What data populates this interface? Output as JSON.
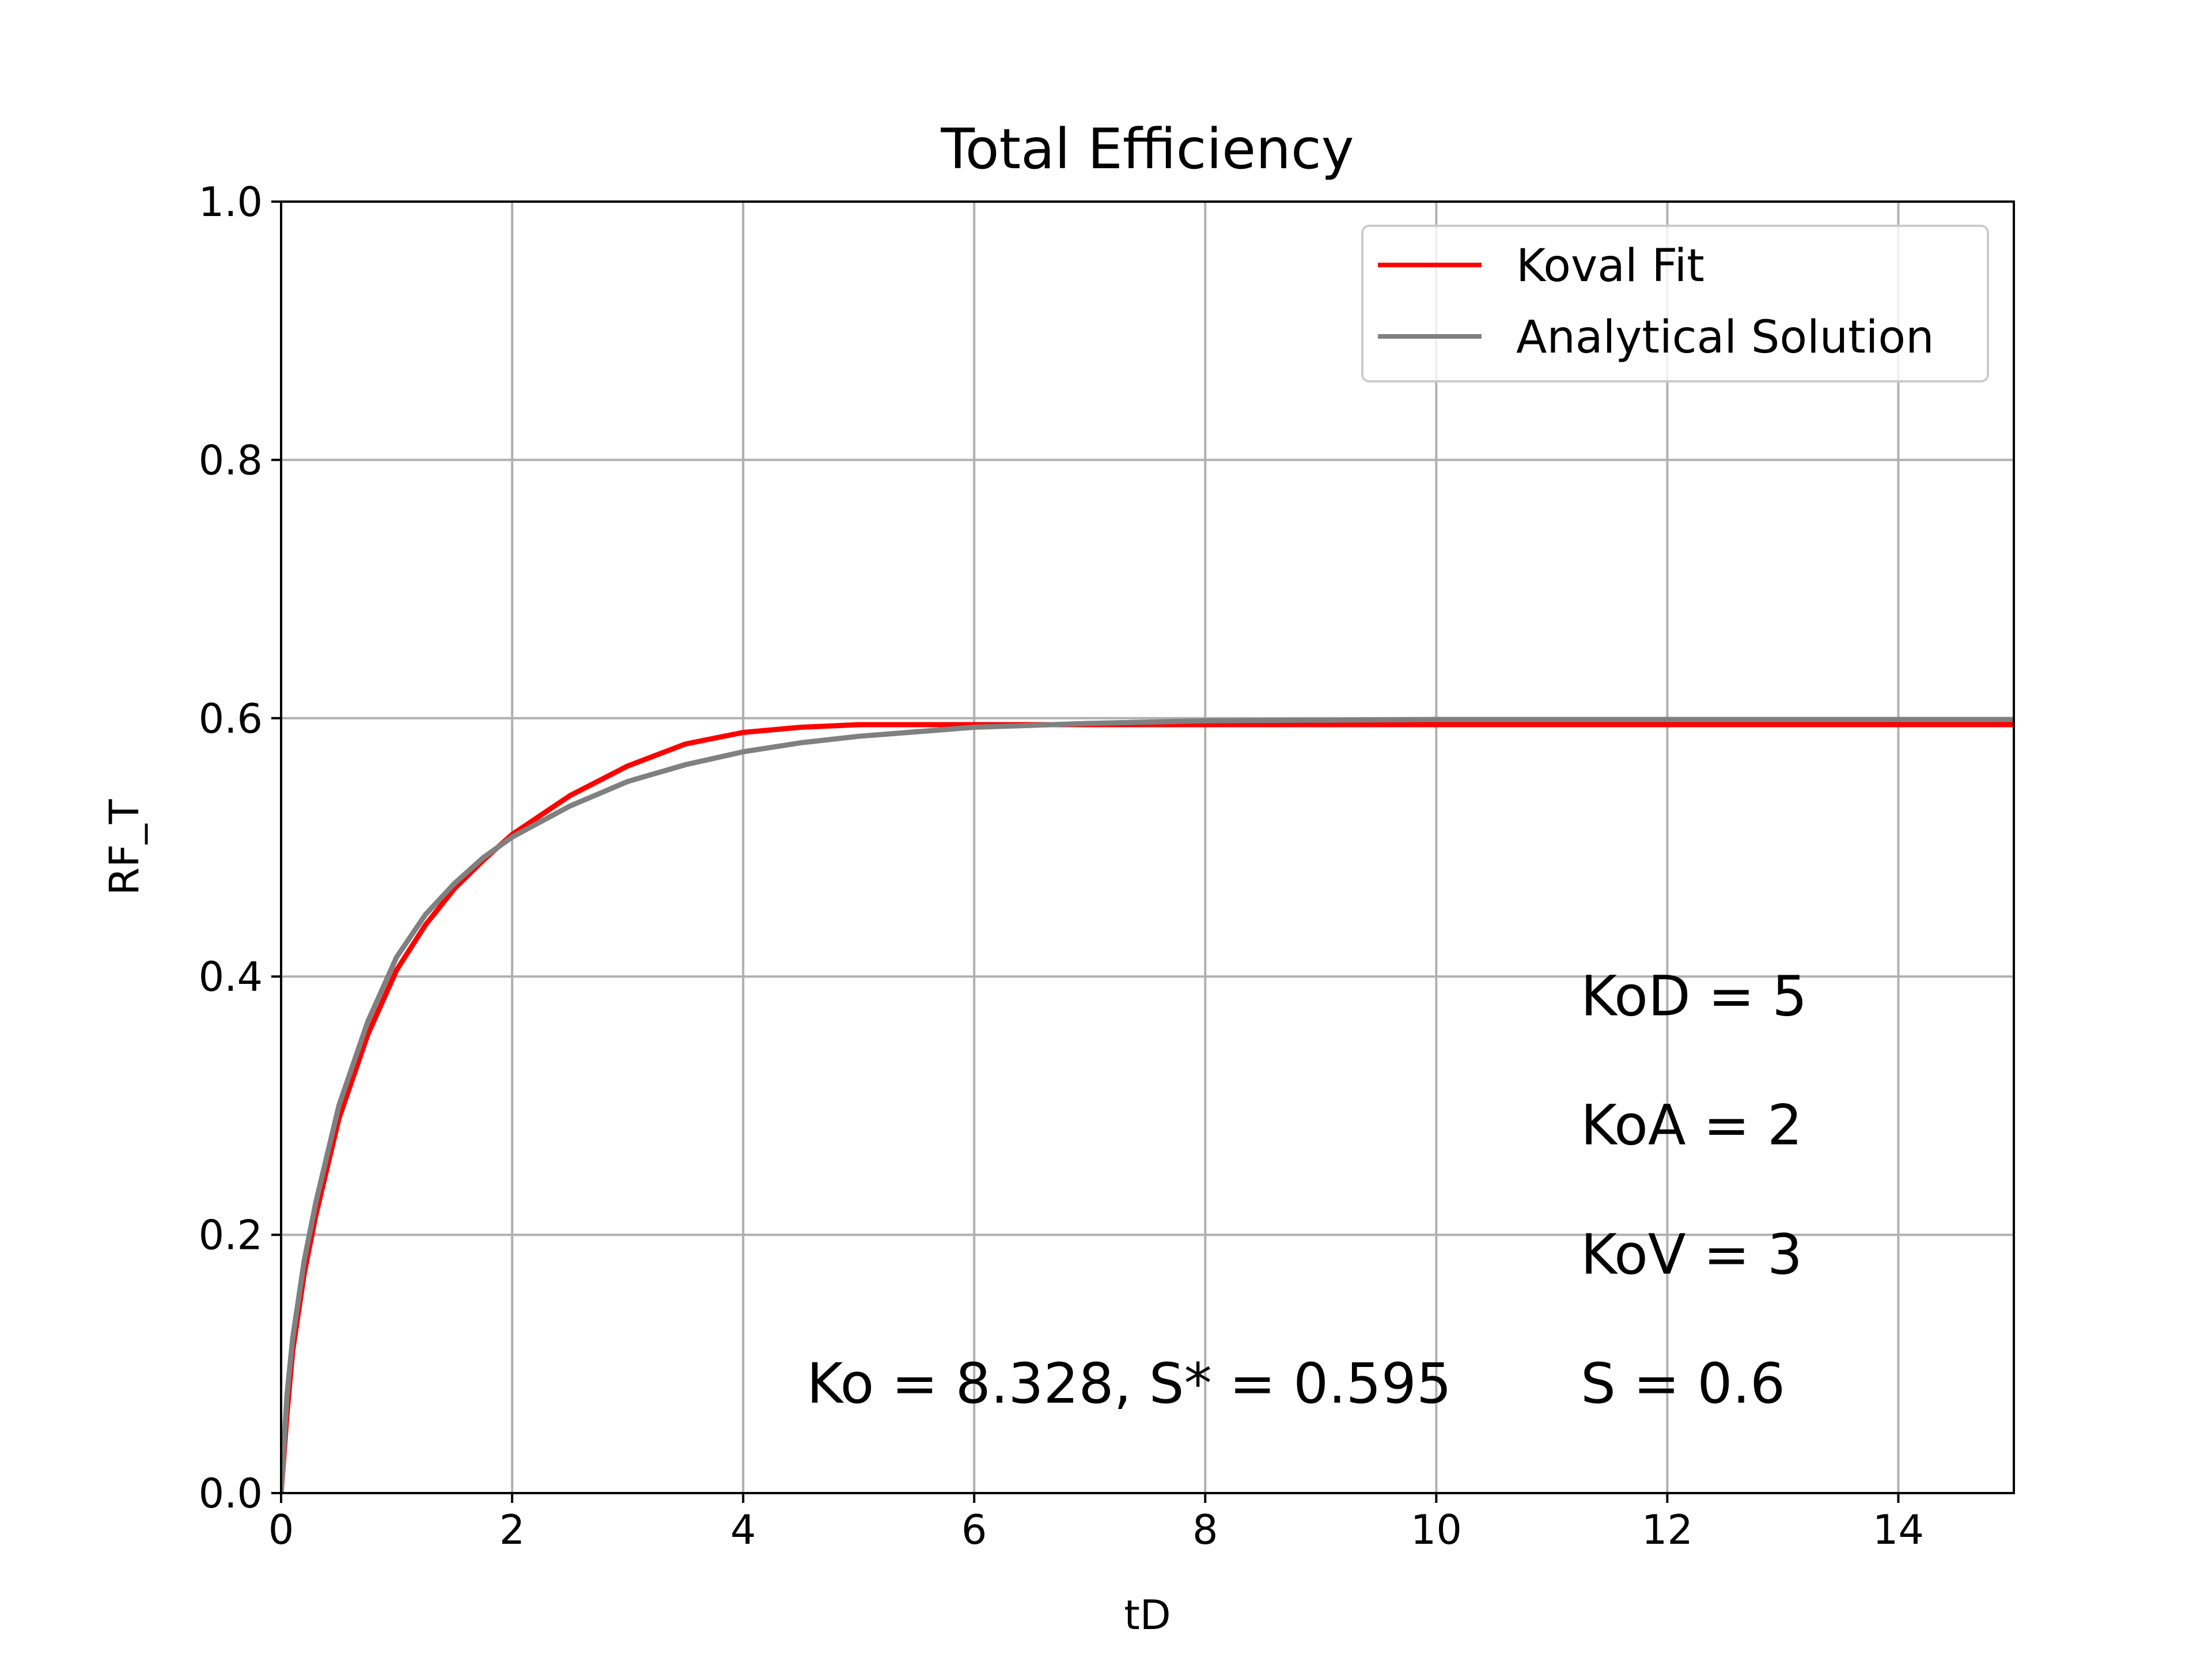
{
  "chart_data": {
    "type": "line",
    "title": "Total Efficiency",
    "xlabel": "tD",
    "ylabel": "RF_T",
    "xlim": [
      0,
      15
    ],
    "ylim": [
      0,
      1.0
    ],
    "xticks": [
      0,
      2,
      4,
      6,
      8,
      10,
      12,
      14
    ],
    "yticks": [
      0.0,
      0.2,
      0.4,
      0.6,
      0.8,
      1.0
    ],
    "xtick_labels": [
      "0",
      "2",
      "4",
      "6",
      "8",
      "10",
      "12",
      "14"
    ],
    "ytick_labels": [
      "0.0",
      "0.2",
      "0.4",
      "0.6",
      "0.8",
      "1.0"
    ],
    "grid": true,
    "legend_position": "top-right",
    "series": [
      {
        "name": "Koval Fit",
        "color": "#ff0000",
        "x": [
          0,
          0.05,
          0.1,
          0.2,
          0.3,
          0.5,
          0.75,
          1.0,
          1.25,
          1.5,
          1.75,
          2.0,
          2.5,
          3.0,
          3.5,
          4.0,
          4.5,
          5.0,
          6.0,
          7.0,
          8.0,
          10.0,
          12.0,
          15.0
        ],
        "y": [
          0,
          0.06,
          0.11,
          0.17,
          0.215,
          0.29,
          0.355,
          0.405,
          0.44,
          0.468,
          0.49,
          0.51,
          0.54,
          0.563,
          0.58,
          0.589,
          0.593,
          0.595,
          0.595,
          0.595,
          0.595,
          0.595,
          0.595,
          0.595
        ]
      },
      {
        "name": "Analytical Solution",
        "color": "#808080",
        "x": [
          0,
          0.05,
          0.1,
          0.2,
          0.3,
          0.5,
          0.75,
          1.0,
          1.25,
          1.5,
          1.75,
          2.0,
          2.5,
          3.0,
          3.5,
          4.0,
          4.5,
          5.0,
          6.0,
          7.0,
          8.0,
          10.0,
          12.0,
          15.0
        ],
        "y": [
          0,
          0.075,
          0.12,
          0.18,
          0.225,
          0.3,
          0.365,
          0.415,
          0.448,
          0.472,
          0.492,
          0.508,
          0.532,
          0.551,
          0.564,
          0.574,
          0.581,
          0.586,
          0.593,
          0.596,
          0.598,
          0.599,
          0.599,
          0.599
        ]
      }
    ],
    "annotations": [
      {
        "text": "KoD = 5",
        "x": 11.25,
        "y": 0.37
      },
      {
        "text": "KoA = 2",
        "x": 11.25,
        "y": 0.27
      },
      {
        "text": "KoV = 3",
        "x": 11.25,
        "y": 0.17
      },
      {
        "text": "S = 0.6",
        "x": 11.25,
        "y": 0.07
      },
      {
        "text": "Ko = 8.328, S* = 0.595",
        "x": 4.55,
        "y": 0.07
      }
    ]
  }
}
